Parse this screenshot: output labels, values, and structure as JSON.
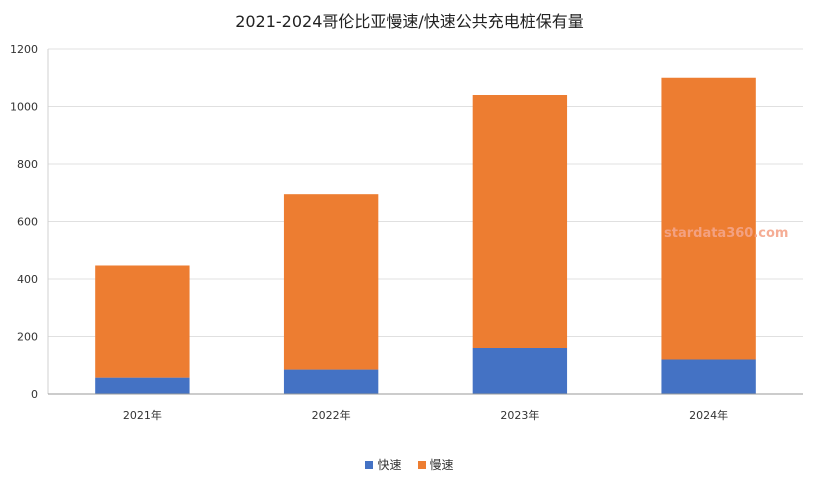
{
  "chart_data": {
    "type": "bar",
    "stacked": true,
    "title": "2021-2024哥伦比亚慢速/快速公共充电桩保有量",
    "categories": [
      "2021年",
      "2022年",
      "2023年",
      "2024年"
    ],
    "series": [
      {
        "name": "快速",
        "color": "#4472c4",
        "values": [
          57,
          85,
          160,
          120
        ]
      },
      {
        "name": "慢速",
        "color": "#ed7d31",
        "values": [
          390,
          610,
          880,
          980
        ]
      }
    ],
    "ylim": [
      0,
      1200
    ],
    "yticks": [
      0,
      200,
      400,
      600,
      800,
      1000,
      1200
    ],
    "grid": true,
    "legend_position": "bottom"
  },
  "watermark": "stardata360.com"
}
